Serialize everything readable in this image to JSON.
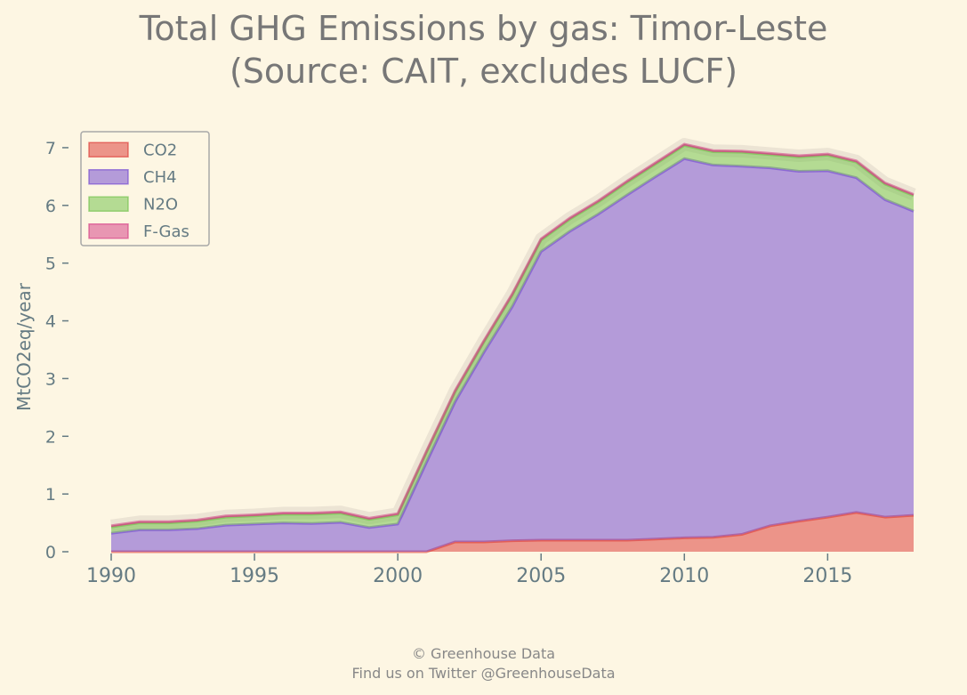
{
  "title": {
    "line1": "Total GHG Emissions by gas: Timor-Leste",
    "line2": "(Source: CAIT, excludes LUCF)"
  },
  "footer": {
    "line1": "© Greenhouse Data",
    "line2": "Find us on Twitter @GreenhouseData"
  },
  "chart_data": {
    "type": "area",
    "stacked": true,
    "x": [
      1990,
      1991,
      1992,
      1993,
      1994,
      1995,
      1996,
      1997,
      1998,
      1999,
      2000,
      2001,
      2002,
      2003,
      2004,
      2005,
      2006,
      2007,
      2008,
      2009,
      2010,
      2011,
      2012,
      2013,
      2014,
      2015,
      2016,
      2017,
      2018
    ],
    "series": [
      {
        "name": "CO2",
        "color": "#dc322f",
        "values": [
          0,
          0,
          0,
          0,
          0,
          0,
          0,
          0,
          0,
          0,
          0,
          0,
          0.17,
          0.17,
          0.19,
          0.2,
          0.2,
          0.2,
          0.2,
          0.22,
          0.24,
          0.25,
          0.3,
          0.45,
          0.53,
          0.6,
          0.68,
          0.6,
          0.63
        ]
      },
      {
        "name": "CH4",
        "color": "#6c3fd0",
        "values": [
          0.32,
          0.38,
          0.38,
          0.4,
          0.46,
          0.48,
          0.5,
          0.49,
          0.51,
          0.42,
          0.48,
          1.55,
          2.43,
          3.28,
          4.06,
          5.0,
          5.35,
          5.65,
          5.98,
          6.28,
          6.57,
          6.45,
          6.38,
          6.2,
          6.06,
          6.0,
          5.8,
          5.5,
          5.27
        ]
      },
      {
        "name": "N2O",
        "color": "#6bc044",
        "values": [
          0.11,
          0.12,
          0.12,
          0.13,
          0.14,
          0.14,
          0.15,
          0.16,
          0.16,
          0.14,
          0.16,
          0.17,
          0.17,
          0.18,
          0.2,
          0.2,
          0.21,
          0.21,
          0.22,
          0.22,
          0.23,
          0.23,
          0.24,
          0.23,
          0.25,
          0.27,
          0.27,
          0.27,
          0.27
        ]
      },
      {
        "name": "F-Gas",
        "color": "#d33682",
        "values": [
          0.02,
          0.02,
          0.02,
          0.02,
          0.02,
          0.02,
          0.02,
          0.02,
          0.02,
          0.02,
          0.02,
          0.02,
          0.02,
          0.02,
          0.02,
          0.02,
          0.02,
          0.02,
          0.02,
          0.02,
          0.02,
          0.02,
          0.02,
          0.02,
          0.02,
          0.02,
          0.02,
          0.02,
          0.02
        ]
      }
    ],
    "xlabel": "",
    "ylabel": "MtCO2eq/year",
    "xlim": [
      1990,
      2018
    ],
    "ylim": [
      0,
      7.4
    ],
    "x_ticks": [
      1990,
      1995,
      2000,
      2005,
      2010,
      2015
    ],
    "y_ticks": [
      0,
      1,
      2,
      3,
      4,
      5,
      6,
      7
    ],
    "grid": false,
    "legend": "top-left"
  }
}
